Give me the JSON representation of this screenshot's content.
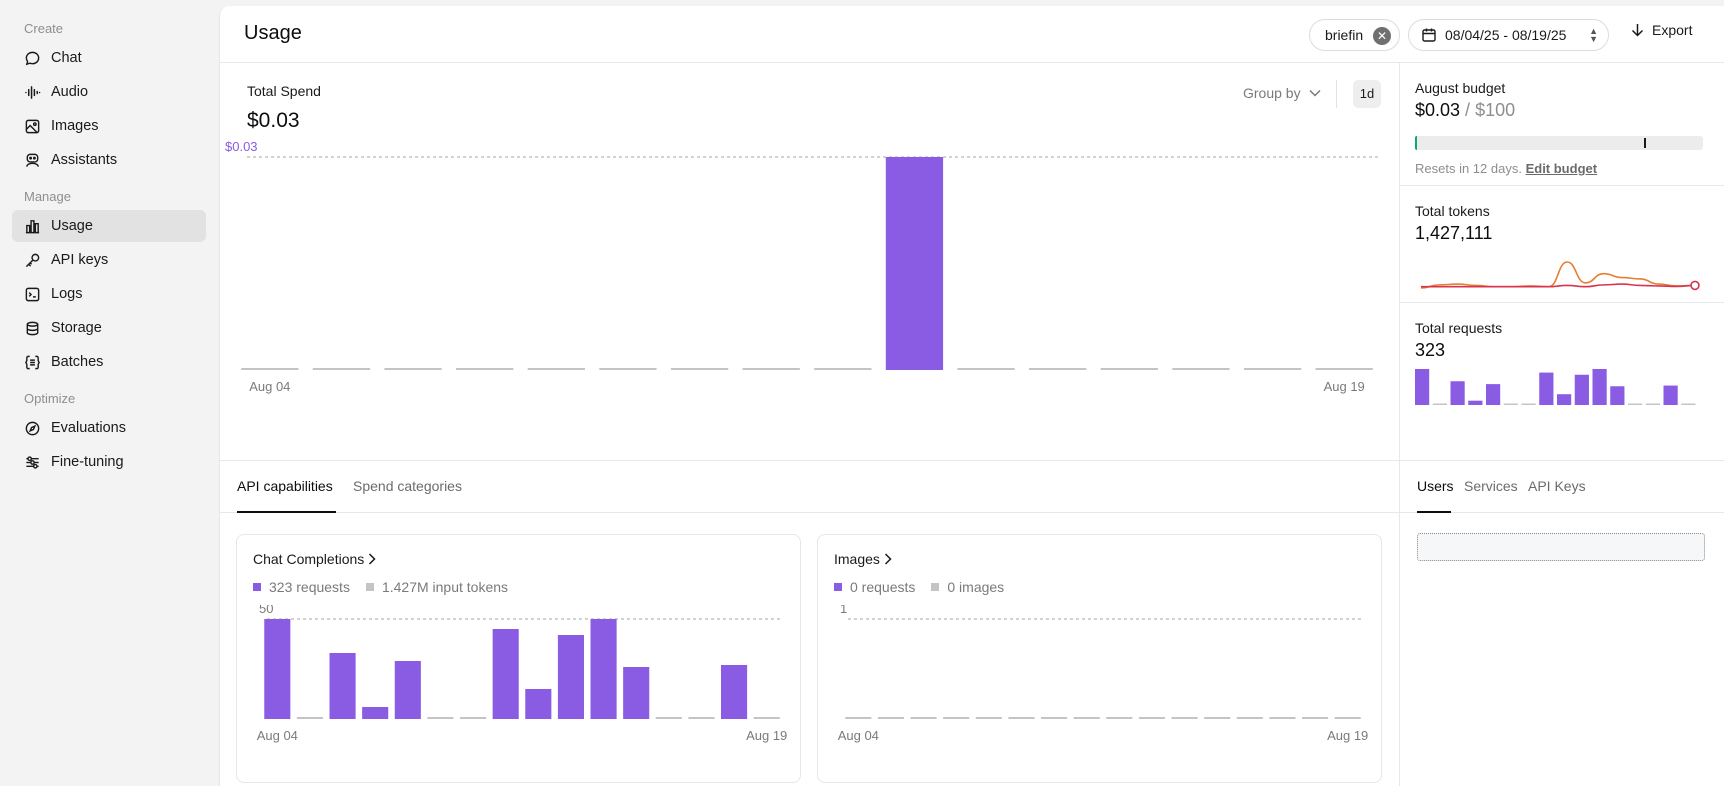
{
  "sidebar": {
    "sections": [
      "Create",
      "Manage",
      "Optimize"
    ],
    "create": [
      {
        "label": "Chat",
        "icon": "chat-bubble-icon"
      },
      {
        "label": "Audio",
        "icon": "audio-wave-icon"
      },
      {
        "label": "Images",
        "icon": "image-icon"
      },
      {
        "label": "Assistants",
        "icon": "assistant-icon"
      }
    ],
    "manage": [
      {
        "label": "Usage",
        "icon": "bar-chart-icon",
        "active": true
      },
      {
        "label": "API keys",
        "icon": "key-icon"
      },
      {
        "label": "Logs",
        "icon": "terminal-icon"
      },
      {
        "label": "Storage",
        "icon": "database-icon"
      },
      {
        "label": "Batches",
        "icon": "batches-icon"
      }
    ],
    "optimize": [
      {
        "label": "Evaluations",
        "icon": "compass-icon"
      },
      {
        "label": "Fine-tuning",
        "icon": "sliders-icon"
      }
    ]
  },
  "header": {
    "title": "Usage",
    "project_filter": "briefin",
    "date_range": "08/04/25 - 08/19/25",
    "export_label": "Export"
  },
  "spend": {
    "label": "Total Spend",
    "value": "$0.03",
    "group_by_label": "Group by",
    "interval": "1d",
    "chart_data": {
      "type": "bar",
      "reference_label": "$0.03",
      "reference_value": 0.03,
      "x_tick_labels": [
        "Aug 04",
        "Aug 19"
      ],
      "values": [
        0,
        0,
        0,
        0,
        0,
        0,
        0,
        0,
        0,
        0.03,
        0,
        0,
        0,
        0,
        0,
        0
      ],
      "ylim": [
        0,
        0.03
      ]
    }
  },
  "bottom_tabs": [
    "API capabilities",
    "Spend categories"
  ],
  "cards": [
    {
      "title": "Chat Completions",
      "legend": [
        {
          "label": "323 requests",
          "color": "#8a5be3"
        },
        {
          "label": "1.427M input tokens",
          "color": "#c4c4c4"
        }
      ],
      "chart_data": {
        "type": "bar",
        "reference_label": "50",
        "reference_value": 50,
        "x_tick_labels": [
          "Aug 04",
          "Aug 19"
        ],
        "values": [
          50,
          0,
          33,
          6,
          29,
          0,
          0,
          45,
          15,
          42,
          50,
          26,
          0,
          0,
          27,
          0
        ],
        "ylim": [
          0,
          50
        ]
      }
    },
    {
      "title": "Images",
      "legend": [
        {
          "label": "0 requests",
          "color": "#8a5be3"
        },
        {
          "label": "0 images",
          "color": "#c4c4c4"
        }
      ],
      "chart_data": {
        "type": "bar",
        "reference_label": "1",
        "reference_value": 1,
        "x_tick_labels": [
          "Aug 04",
          "Aug 19"
        ],
        "values": [
          0,
          0,
          0,
          0,
          0,
          0,
          0,
          0,
          0,
          0,
          0,
          0,
          0,
          0,
          0,
          0
        ],
        "ylim": [
          0,
          1
        ]
      }
    }
  ],
  "budget": {
    "label": "August budget",
    "spent": "$0.03",
    "separator": " / ",
    "limit": "$100",
    "note": "Resets in 12 days.",
    "edit_label": "Edit budget",
    "fraction_used": 0.0003,
    "alert_threshold_fraction": 0.8
  },
  "tokens": {
    "label": "Total tokens",
    "value": "1,427,111",
    "chart_data": {
      "type": "line",
      "series": [
        {
          "color": "#e67e30",
          "values": [
            0,
            0.12,
            0.15,
            0.1,
            0.05,
            0.05,
            0.08,
            0.05,
            1.0,
            0.2,
            0.55,
            0.4,
            0.35,
            0.15,
            0.08,
            0.1
          ]
        },
        {
          "color": "#d8344f",
          "values": [
            0.05,
            0.05,
            0.05,
            0.05,
            0.05,
            0.05,
            0.05,
            0.05,
            0.1,
            0.05,
            0.12,
            0.15,
            0.1,
            0.08,
            0.06,
            0.1
          ]
        }
      ]
    }
  },
  "requests": {
    "label": "Total requests",
    "value": "323",
    "chart_data": {
      "type": "bar",
      "values": [
        50,
        0,
        33,
        6,
        29,
        0,
        0,
        45,
        15,
        42,
        50,
        26,
        0,
        0,
        27,
        0
      ]
    }
  },
  "right_tabs": [
    "Users",
    "Services",
    "API Keys"
  ],
  "colors": {
    "accent": "#8a5be3",
    "muted_bar": "#c4c4c4",
    "budget_fill": "#10a37f"
  }
}
